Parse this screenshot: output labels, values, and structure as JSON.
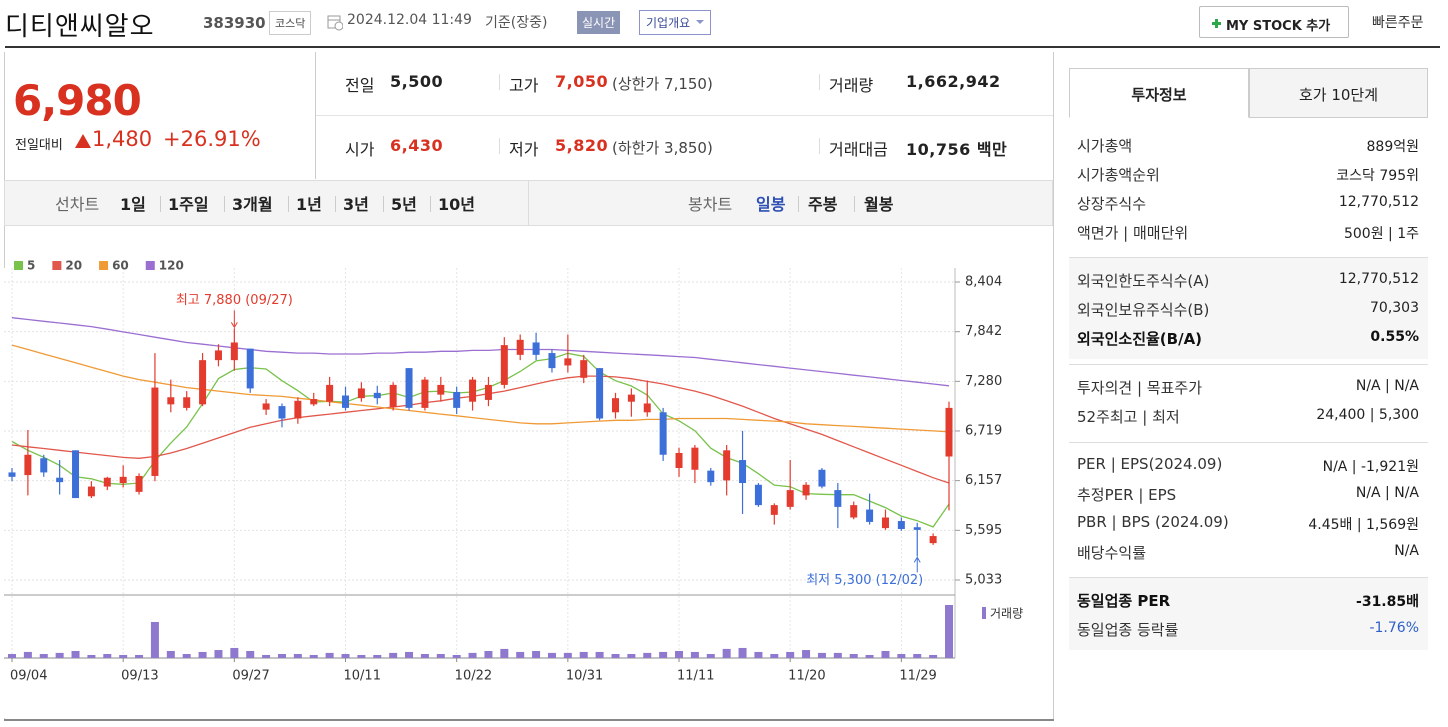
{
  "header": {
    "name": "디티앤씨알오",
    "code": "383930",
    "market": "코스닥",
    "datetime": "2024.12.04 11:49",
    "basis": "기준(장중)",
    "realtime": "실시간",
    "company": "기업개요",
    "mystock": "MY STOCK 추가",
    "quick_order": "빠른주문"
  },
  "price": {
    "current": "6,980",
    "change_label": "전일대비",
    "change": "1,480",
    "rate": "+26.91%"
  },
  "quotes": [
    [
      {
        "label": "전일",
        "value": "5,500"
      },
      {
        "label": "고가",
        "value": "7,050",
        "note": "(상한가 7,150)"
      },
      {
        "label": "거래량",
        "value": "1,662,942"
      }
    ],
    [
      {
        "label": "시가",
        "value": "6,430"
      },
      {
        "label": "저가",
        "value": "5,820",
        "note": "(하한가 3,850)"
      },
      {
        "label": "거래대금",
        "value": "10,756 백만"
      }
    ]
  ],
  "period_tabs": {
    "line_label": "선차트",
    "line_periods": [
      "1일",
      "1주일",
      "3개월",
      "1년",
      "3년",
      "5년",
      "10년"
    ],
    "candle_label": "봉차트",
    "candle_periods": [
      "일봉",
      "주봉",
      "월봉"
    ]
  },
  "info_tabs": [
    "투자정보",
    "호가 10단계"
  ],
  "info_groups": [
    [
      [
        "시가총액",
        "889억원"
      ],
      [
        "시가총액순위",
        "코스닥 795위"
      ],
      [
        "상장주식수",
        "12,770,512"
      ],
      [
        "액면가 | 매매단위",
        "500원 | 1주"
      ]
    ],
    [
      [
        "외국인한도주식수(A)",
        "12,770,512"
      ],
      [
        "외국인보유주식수(B)",
        "70,303"
      ],
      [
        "외국인소진율(B/A)",
        "0.55%"
      ]
    ],
    [
      [
        "투자의견 | 목표주가",
        "N/A | N/A"
      ],
      [
        "52주최고 | 최저",
        "24,400 | 5,300"
      ]
    ],
    [
      [
        "PER | EPS(2024.09)",
        "N/A | -1,921원"
      ],
      [
        "추정PER | EPS",
        "N/A | N/A"
      ],
      [
        "PBR | BPS (2024.09)",
        "4.45배 | 1,569원"
      ],
      [
        "배당수익률",
        "N/A"
      ]
    ],
    [
      [
        "동일업종 PER",
        "-31.85배"
      ],
      [
        "동일업종 등락률",
        "-1.76%"
      ]
    ]
  ],
  "chart_data": {
    "type": "candlestick",
    "categories": [
      "09/04",
      null,
      null,
      null,
      null,
      null,
      null,
      "09/13",
      null,
      null,
      null,
      null,
      null,
      null,
      "09/27",
      null,
      null,
      null,
      null,
      null,
      null,
      "10/11",
      null,
      null,
      null,
      null,
      null,
      null,
      "10/22",
      null,
      null,
      null,
      null,
      null,
      null,
      "10/31",
      null,
      null,
      null,
      null,
      null,
      null,
      "11/11",
      null,
      null,
      null,
      null,
      null,
      null,
      "11/20",
      null,
      null,
      null,
      null,
      null,
      null,
      "11/29",
      null,
      null,
      null
    ],
    "open": [
      6250,
      6220,
      6410,
      6190,
      6500,
      5980,
      6090,
      6130,
      6030,
      6210,
      7020,
      6980,
      7020,
      7520,
      7520,
      7650,
      6960,
      7000,
      6860,
      7020,
      7050,
      7120,
      7090,
      7150,
      6990,
      7430,
      6980,
      7130,
      7160,
      7050,
      7070,
      7240,
      7580,
      7720,
      7600,
      7460,
      7320,
      7430,
      6930,
      7050,
      6930,
      6930,
      6300,
      6280,
      6270,
      6160,
      6390,
      6110,
      5770,
      5860,
      5990,
      6280,
      6050,
      5740,
      5830,
      5620,
      5700,
      5630,
      5450,
      6430
    ],
    "high": [
      6300,
      6730,
      6450,
      6390,
      6500,
      6150,
      6200,
      6330,
      6240,
      7600,
      7300,
      7170,
      7600,
      7700,
      7880,
      7650,
      7080,
      7030,
      7100,
      7150,
      7330,
      7220,
      7270,
      7230,
      7270,
      7430,
      7330,
      7330,
      7220,
      7330,
      7330,
      7780,
      7810,
      7830,
      7640,
      7810,
      7580,
      7430,
      7150,
      7200,
      7290,
      6980,
      6530,
      6560,
      6300,
      6560,
      6720,
      6130,
      5900,
      6390,
      6140,
      6300,
      6130,
      5920,
      6010,
      5830,
      5740,
      5680,
      5560,
      7050
    ],
    "low": [
      6150,
      5990,
      6200,
      6000,
      5960,
      5960,
      6050,
      6080,
      6000,
      6150,
      6930,
      6950,
      7000,
      7450,
      7400,
      7150,
      6900,
      6760,
      6800,
      7000,
      7000,
      6950,
      7050,
      7020,
      6950,
      6950,
      6950,
      7050,
      6910,
      6950,
      7000,
      7200,
      7520,
      7520,
      7380,
      7380,
      7260,
      6840,
      6860,
      6880,
      6880,
      6380,
      6200,
      6130,
      6100,
      5990,
      5780,
      5860,
      5660,
      5830,
      5940,
      6070,
      5620,
      5720,
      5660,
      5600,
      5590,
      5300,
      5430,
      5820
    ],
    "close": [
      6200,
      6450,
      6250,
      6140,
      5960,
      6090,
      6190,
      6200,
      6210,
      7210,
      7100,
      7100,
      7520,
      7630,
      7720,
      7200,
      7030,
      6860,
      7060,
      7080,
      7240,
      6980,
      7200,
      7090,
      7240,
      6980,
      7300,
      7240,
      6980,
      7300,
      7240,
      7690,
      7750,
      7580,
      7430,
      7540,
      7520,
      6860,
      7090,
      7130,
      7030,
      6450,
      6470,
      6530,
      6140,
      6500,
      6130,
      5880,
      5880,
      6050,
      6110,
      6090,
      5860,
      5880,
      5690,
      5740,
      5610,
      5600,
      5530,
      6980
    ],
    "up_color": "#e33b2e",
    "down_color": "#3d6fd9",
    "series": [
      {
        "name": "5",
        "color": "#79c24b",
        "values": [
          6600,
          6500,
          6420,
          6330,
          6200,
          6178,
          6126,
          6116,
          6130,
          6380,
          6582,
          6764,
          7028,
          7312,
          7414,
          7434,
          7420,
          7288,
          7174,
          7046,
          7054,
          7044,
          7112,
          7118,
          7150,
          7098,
          7162,
          7170,
          7148,
          7160,
          7212,
          7290,
          7392,
          7512,
          7538,
          7598,
          7564,
          7386,
          7288,
          7228,
          7126,
          6912,
          6834,
          6722,
          6524,
          6418,
          6354,
          6236,
          6106,
          6088,
          6010,
          6002,
          5998,
          5998,
          5926,
          5852,
          5756,
          5704,
          5634,
          5892
        ]
      },
      {
        "name": "20",
        "color": "#e2574b",
        "values": [
          6560,
          6540,
          6520,
          6500,
          6480,
          6460,
          6440,
          6420,
          6410,
          6430,
          6470,
          6520,
          6580,
          6640,
          6700,
          6760,
          6800,
          6840,
          6870,
          6890,
          6910,
          6930,
          6950,
          6970,
          6990,
          7010,
          7040,
          7060,
          7090,
          7110,
          7140,
          7170,
          7210,
          7250,
          7290,
          7320,
          7340,
          7340,
          7330,
          7310,
          7280,
          7250,
          7210,
          7170,
          7120,
          7060,
          7000,
          6930,
          6860,
          6800,
          6740,
          6680,
          6610,
          6540,
          6470,
          6400,
          6330,
          6260,
          6190,
          6130
        ]
      },
      {
        "name": "60",
        "color": "#f09a36",
        "values": [
          7690,
          7640,
          7590,
          7540,
          7490,
          7440,
          7390,
          7340,
          7300,
          7270,
          7240,
          7210,
          7190,
          7170,
          7150,
          7130,
          7120,
          7110,
          7090,
          7070,
          7050,
          7030,
          7010,
          6990,
          6970,
          6950,
          6930,
          6910,
          6890,
          6870,
          6850,
          6830,
          6810,
          6800,
          6800,
          6810,
          6820,
          6830,
          6840,
          6840,
          6850,
          6850,
          6860,
          6860,
          6860,
          6860,
          6850,
          6840,
          6830,
          6820,
          6800,
          6790,
          6780,
          6770,
          6760,
          6750,
          6740,
          6730,
          6720,
          6710
        ]
      },
      {
        "name": "120",
        "color": "#9b6ed2",
        "values": [
          8000,
          7980,
          7960,
          7940,
          7920,
          7900,
          7870,
          7840,
          7810,
          7780,
          7750,
          7720,
          7700,
          7680,
          7660,
          7640,
          7620,
          7610,
          7600,
          7600,
          7590,
          7590,
          7590,
          7600,
          7600,
          7610,
          7610,
          7620,
          7620,
          7630,
          7630,
          7640,
          7640,
          7640,
          7640,
          7630,
          7620,
          7610,
          7600,
          7590,
          7580,
          7570,
          7560,
          7550,
          7530,
          7510,
          7490,
          7470,
          7450,
          7430,
          7410,
          7390,
          7370,
          7350,
          7330,
          7310,
          7290,
          7270,
          7250,
          7230
        ]
      }
    ],
    "ylim": [
      5033,
      8404
    ],
    "yticks": [
      {
        "value": 8404,
        "label": "8,404"
      },
      {
        "value": 7842,
        "label": "7,842"
      },
      {
        "value": 7280,
        "label": "7,280"
      },
      {
        "value": 6719,
        "label": "6,719"
      },
      {
        "value": 6157,
        "label": "6,157"
      },
      {
        "value": 5595,
        "label": "5,595"
      },
      {
        "value": 5033,
        "label": "5,033"
      }
    ],
    "grid": true,
    "high_label": "최고 7,880 (09/27)",
    "low_label": "최저 5,300 (12/02)",
    "volume": {
      "name": "거래량",
      "color": "#8e79cf",
      "values": [
        125000,
        190000,
        125000,
        160000,
        220000,
        95000,
        125000,
        95000,
        95000,
        1130000,
        220000,
        125000,
        190000,
        250000,
        315000,
        220000,
        95000,
        125000,
        125000,
        95000,
        160000,
        125000,
        95000,
        95000,
        160000,
        190000,
        125000,
        125000,
        95000,
        160000,
        220000,
        285000,
        190000,
        220000,
        160000,
        160000,
        190000,
        190000,
        125000,
        125000,
        160000,
        190000,
        220000,
        190000,
        125000,
        285000,
        315000,
        190000,
        125000,
        190000,
        250000,
        160000,
        160000,
        125000,
        95000,
        220000,
        125000,
        125000,
        95000,
        1662942
      ]
    }
  }
}
